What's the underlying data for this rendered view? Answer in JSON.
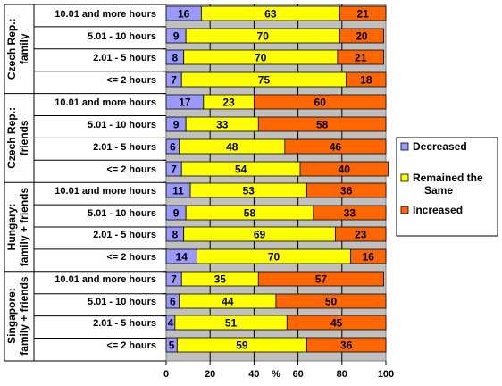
{
  "chart_data": {
    "type": "bar",
    "stacked": true,
    "orientation": "horizontal",
    "xlabel": "%",
    "xlim": [
      0,
      100
    ],
    "xticks": [
      0,
      20,
      40,
      60,
      80,
      100
    ],
    "grid": true,
    "legend_position": "right",
    "groups": [
      {
        "label": "Czech Rep.: family",
        "rows": [
          {
            "category": "10.01 and more hours",
            "values": [
              16,
              63,
              21
            ]
          },
          {
            "category": "5.01 - 10 hours",
            "values": [
              9,
              70,
              20
            ]
          },
          {
            "category": "2.01 - 5 hours",
            "values": [
              8,
              70,
              21
            ]
          },
          {
            "category": "<= 2 hours",
            "values": [
              7,
              75,
              18
            ]
          }
        ]
      },
      {
        "label": "Czech Rep.: friends",
        "rows": [
          {
            "category": "10.01 and more hours",
            "values": [
              17,
              23,
              60
            ]
          },
          {
            "category": "5.01 - 10 hours",
            "values": [
              9,
              33,
              58
            ]
          },
          {
            "category": "2.01 - 5 hours",
            "values": [
              6,
              48,
              46
            ]
          },
          {
            "category": "<= 2 hours",
            "values": [
              7,
              54,
              40
            ]
          }
        ]
      },
      {
        "label": "Hungary: family + friends",
        "rows": [
          {
            "category": "10.01 and more hours",
            "values": [
              11,
              53,
              36
            ]
          },
          {
            "category": "5.01 - 10 hours",
            "values": [
              9,
              58,
              33
            ]
          },
          {
            "category": "2.01 - 5 hours",
            "values": [
              8,
              69,
              23
            ]
          },
          {
            "category": "<= 2 hours",
            "values": [
              14,
              70,
              16
            ]
          }
        ]
      },
      {
        "label": "Singapore: family + friends",
        "rows": [
          {
            "category": "10.01 and more hours",
            "values": [
              7,
              35,
              57
            ]
          },
          {
            "category": "5.01 - 10 hours",
            "values": [
              6,
              44,
              50
            ]
          },
          {
            "category": "2.01 - 5 hours",
            "values": [
              4,
              51,
              45
            ]
          },
          {
            "category": "<= 2 hours",
            "values": [
              5,
              59,
              36
            ]
          }
        ]
      }
    ],
    "series": [
      {
        "name": "Decreased",
        "color": "#9999ff"
      },
      {
        "name": "Remained the Same",
        "color": "#ffff00"
      },
      {
        "name": "Increased",
        "color": "#ff6600"
      }
    ],
    "plot_background": "#c0c0c0"
  }
}
